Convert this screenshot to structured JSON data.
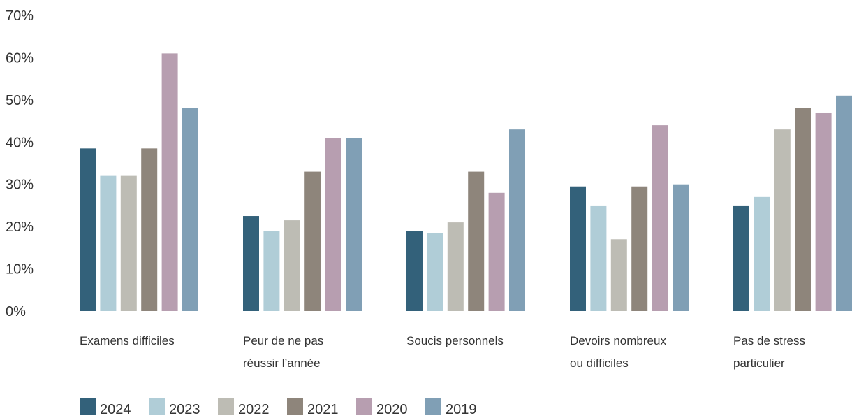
{
  "chart_data": {
    "type": "bar",
    "title": "",
    "xlabel": "",
    "ylabel": "",
    "ylim": [
      0,
      70
    ],
    "y_ticks": [
      "0%",
      "10%",
      "20%",
      "30%",
      "40%",
      "50%",
      "60%",
      "70%"
    ],
    "grid": false,
    "legend_position": "bottom-left",
    "categories": [
      [
        "Examens difficiles"
      ],
      [
        "Peur de ne pas",
        "réussir l’année"
      ],
      [
        "Soucis personnels"
      ],
      [
        "Devoirs nombreux",
        "ou difficiles"
      ],
      [
        "Pas de stress",
        "particulier"
      ]
    ],
    "series": [
      {
        "name": "2024",
        "color": "#33617a",
        "values": [
          38.5,
          22.5,
          19,
          29.5,
          25
        ]
      },
      {
        "name": "2023",
        "color": "#b0cdd7",
        "values": [
          32,
          19,
          18.5,
          25,
          27
        ]
      },
      {
        "name": "2022",
        "color": "#bdbcb4",
        "values": [
          32,
          21.5,
          21,
          17,
          43
        ]
      },
      {
        "name": "2021",
        "color": "#8e857b",
        "values": [
          38.5,
          33,
          33,
          29.5,
          48
        ]
      },
      {
        "name": "2020",
        "color": "#b79eb0",
        "values": [
          61,
          41,
          28,
          44,
          47
        ]
      },
      {
        "name": "2019",
        "color": "#809fb5",
        "values": [
          48,
          41,
          43,
          30,
          51
        ]
      }
    ]
  }
}
